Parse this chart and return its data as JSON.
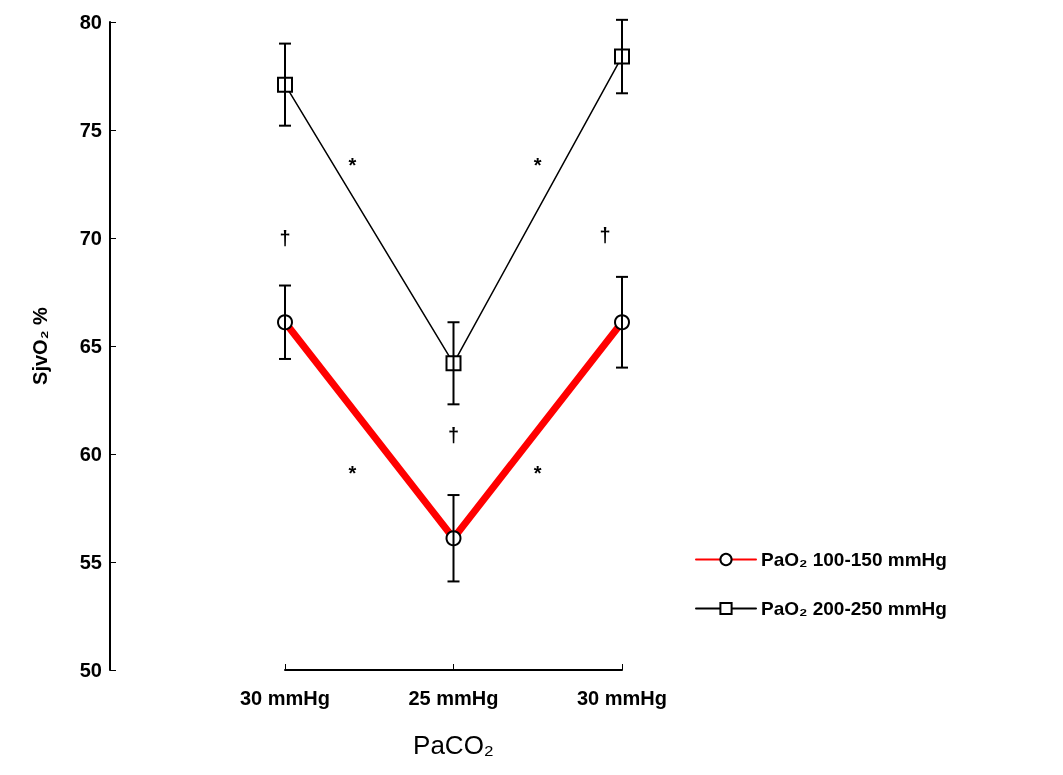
{
  "chart_data": {
    "type": "line",
    "xlabel": "PaCO₂",
    "ylabel": "SjvO₂ %",
    "categories": [
      "30 mmHg",
      "25 mmHg",
      "30 mmHg"
    ],
    "series": [
      {
        "name": "PaO₂ 100-150 mmHg",
        "color": "#ff0000",
        "marker": "circle",
        "values": [
          66.1,
          56.1,
          66.1
        ],
        "errors": [
          1.7,
          2,
          2.1
        ]
      },
      {
        "name": "PaO₂ 200-250 mmHg",
        "color": "#000000",
        "marker": "square",
        "values": [
          77.1,
          64.2,
          78.4
        ],
        "errors": [
          1.9,
          1.9,
          1.7
        ]
      }
    ],
    "ylim": [
      50,
      80
    ],
    "yticks": [
      50,
      55,
      60,
      65,
      70,
      75,
      80
    ],
    "grid": false,
    "legend": "right",
    "line_style": "solid",
    "annotations": [
      "*",
      "*",
      "†",
      "†",
      "†",
      "*",
      "*"
    ]
  }
}
